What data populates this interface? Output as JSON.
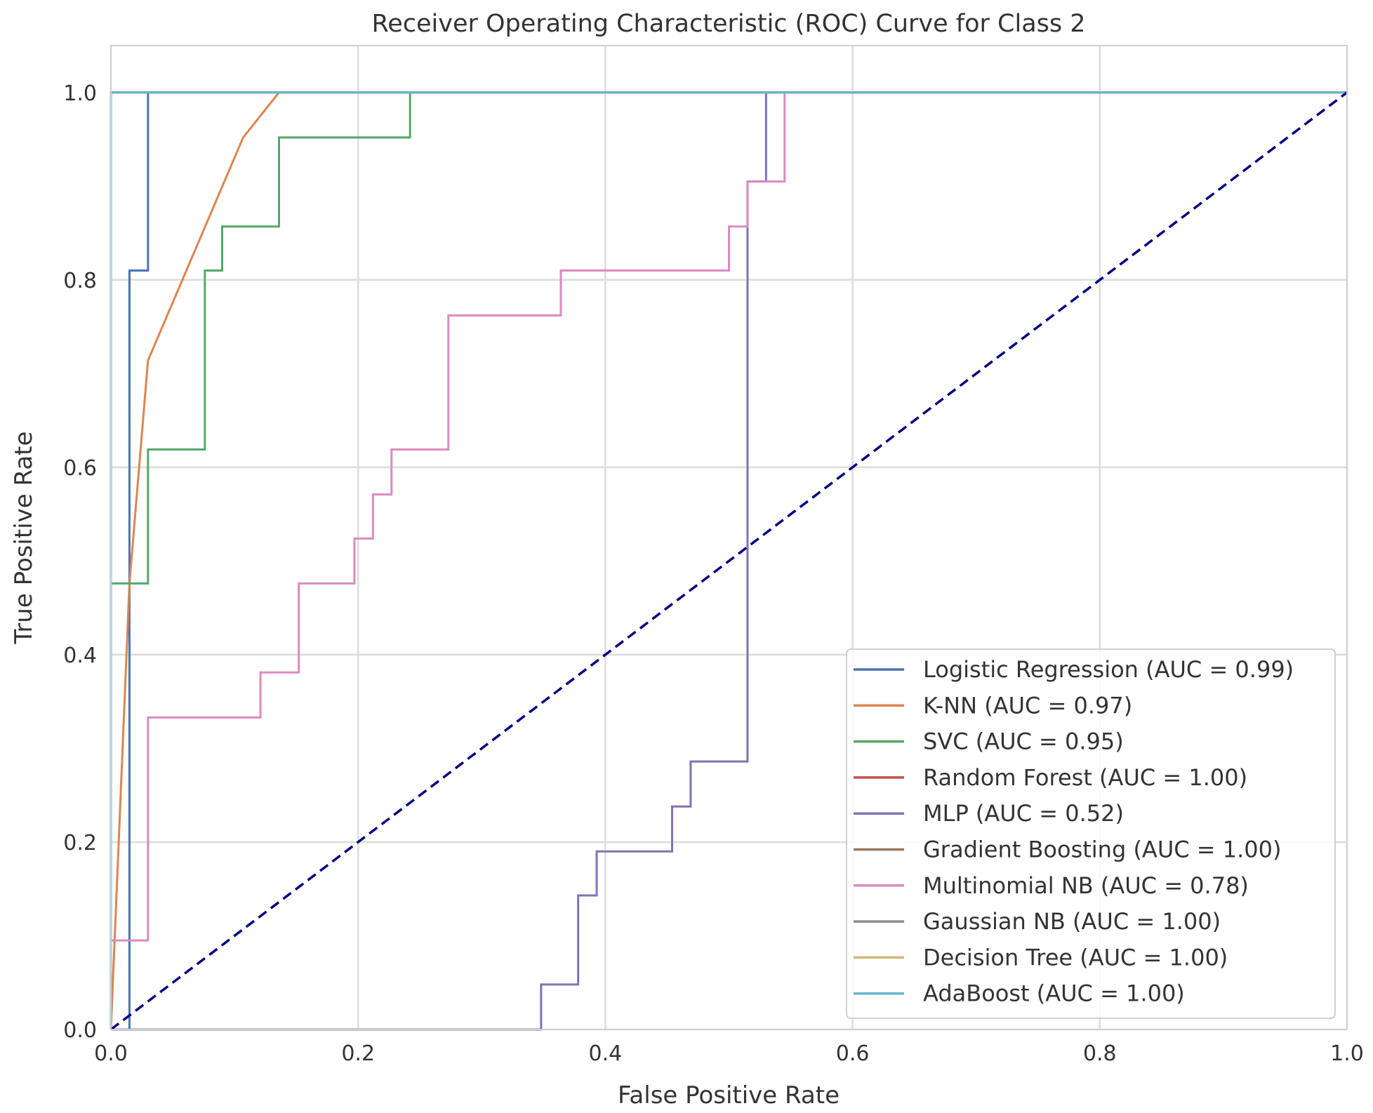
{
  "chart_data": {
    "type": "line",
    "title": "Receiver Operating Characteristic (ROC) Curve for Class 2",
    "xlabel": "False Positive Rate",
    "ylabel": "True Positive Rate",
    "xlim": [
      0,
      1.0
    ],
    "ylim": [
      0,
      1.05
    ],
    "xticks": [
      "0.0",
      "0.2",
      "0.4",
      "0.6",
      "0.8",
      "1.0"
    ],
    "yticks": [
      "0.0",
      "0.2",
      "0.4",
      "0.6",
      "0.8",
      "1.0"
    ],
    "grid": true,
    "legend_position": "lower-right",
    "diagonal": {
      "color": "#000080",
      "style": "dashed",
      "points": [
        [
          0,
          0
        ],
        [
          1,
          1
        ]
      ]
    },
    "series": [
      {
        "name": "Logistic Regression (AUC = 0.99)",
        "color": "#4c72b0",
        "points": [
          [
            0,
            0
          ],
          [
            0.015,
            0
          ],
          [
            0.015,
            0.81
          ],
          [
            0.03,
            0.81
          ],
          [
            0.03,
            1
          ],
          [
            1,
            1
          ]
        ]
      },
      {
        "name": "K-NN (AUC = 0.97)",
        "color": "#dd8452",
        "points": [
          [
            0,
            0
          ],
          [
            0.015,
            0.476
          ],
          [
            0.03,
            0.714
          ],
          [
            0.107,
            0.952
          ],
          [
            0.136,
            1
          ],
          [
            1,
            1
          ]
        ]
      },
      {
        "name": "SVC (AUC = 0.95)",
        "color": "#55a868",
        "points": [
          [
            0,
            0
          ],
          [
            0,
            0.476
          ],
          [
            0.03,
            0.476
          ],
          [
            0.03,
            0.619
          ],
          [
            0.076,
            0.619
          ],
          [
            0.076,
            0.81
          ],
          [
            0.09,
            0.81
          ],
          [
            0.09,
            0.857
          ],
          [
            0.136,
            0.857
          ],
          [
            0.136,
            0.952
          ],
          [
            0.242,
            0.952
          ],
          [
            0.242,
            1
          ],
          [
            1,
            1
          ]
        ]
      },
      {
        "name": "Random Forest (AUC = 1.00)",
        "color": "#c44e52",
        "points": [
          [
            0,
            0
          ],
          [
            0,
            1
          ],
          [
            1,
            1
          ]
        ]
      },
      {
        "name": "MLP (AUC = 0.52)",
        "color": "#8172b3",
        "points": [
          [
            0,
            0
          ],
          [
            0.348,
            0
          ],
          [
            0.348,
            0.048
          ],
          [
            0.378,
            0.048
          ],
          [
            0.378,
            0.143
          ],
          [
            0.393,
            0.143
          ],
          [
            0.393,
            0.19
          ],
          [
            0.454,
            0.19
          ],
          [
            0.454,
            0.238
          ],
          [
            0.469,
            0.238
          ],
          [
            0.469,
            0.286
          ],
          [
            0.515,
            0.286
          ],
          [
            0.515,
            0.905
          ],
          [
            0.53,
            0.905
          ],
          [
            0.53,
            1
          ],
          [
            1,
            1
          ]
        ]
      },
      {
        "name": "Gradient Boosting (AUC = 1.00)",
        "color": "#937860",
        "points": [
          [
            0,
            0
          ],
          [
            0,
            1
          ],
          [
            1,
            1
          ]
        ]
      },
      {
        "name": "Multinomial NB (AUC = 0.78)",
        "color": "#da8bc3",
        "points": [
          [
            0,
            0
          ],
          [
            0,
            0.095
          ],
          [
            0.03,
            0.095
          ],
          [
            0.03,
            0.333
          ],
          [
            0.121,
            0.333
          ],
          [
            0.121,
            0.381
          ],
          [
            0.152,
            0.381
          ],
          [
            0.152,
            0.476
          ],
          [
            0.197,
            0.476
          ],
          [
            0.197,
            0.524
          ],
          [
            0.212,
            0.524
          ],
          [
            0.212,
            0.571
          ],
          [
            0.227,
            0.571
          ],
          [
            0.227,
            0.619
          ],
          [
            0.273,
            0.619
          ],
          [
            0.273,
            0.762
          ],
          [
            0.364,
            0.762
          ],
          [
            0.364,
            0.81
          ],
          [
            0.5,
            0.81
          ],
          [
            0.5,
            0.857
          ],
          [
            0.515,
            0.857
          ],
          [
            0.515,
            0.905
          ],
          [
            0.545,
            0.905
          ],
          [
            0.545,
            1
          ],
          [
            1,
            1
          ]
        ]
      },
      {
        "name": "Gaussian NB (AUC = 1.00)",
        "color": "#8c8c8c",
        "points": [
          [
            0,
            0
          ],
          [
            0,
            1
          ],
          [
            1,
            1
          ]
        ]
      },
      {
        "name": "Decision Tree (AUC = 1.00)",
        "color": "#ccb974",
        "points": [
          [
            0,
            0
          ],
          [
            0,
            1
          ],
          [
            1,
            1
          ]
        ]
      },
      {
        "name": "AdaBoost (AUC = 1.00)",
        "color": "#64b5cd",
        "points": [
          [
            0,
            0
          ],
          [
            0,
            1
          ],
          [
            1,
            1
          ]
        ]
      }
    ]
  }
}
